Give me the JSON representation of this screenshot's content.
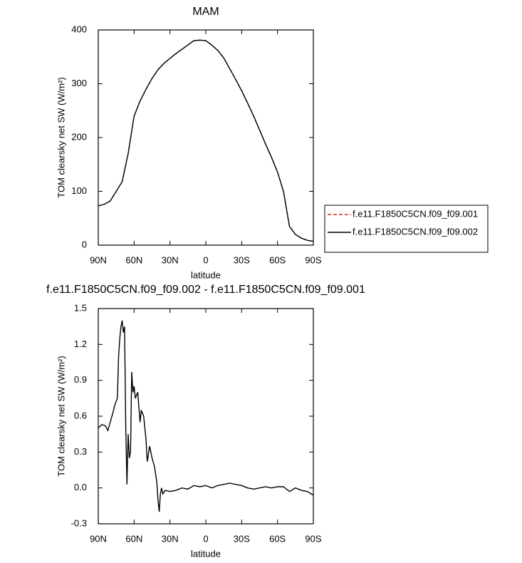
{
  "chart_data": [
    {
      "type": "line",
      "title": "MAM",
      "xlabel": "latitude",
      "ylabel": "TOM clearsky net SW (W/m²)",
      "xlim": [
        90,
        -90
      ],
      "ylim": [
        0,
        400
      ],
      "xticks": [
        {
          "value": 90,
          "label": "90N"
        },
        {
          "value": 60,
          "label": "60N"
        },
        {
          "value": 30,
          "label": "30N"
        },
        0,
        {
          "value": -30,
          "label": "30S"
        },
        {
          "value": -60,
          "label": "60S"
        },
        {
          "value": -90,
          "label": "90S"
        }
      ],
      "yticks": [
        0,
        100,
        200,
        300,
        400
      ],
      "legend": "right",
      "x": [
        90,
        85,
        80,
        75,
        70,
        65,
        60,
        55,
        50,
        45,
        40,
        35,
        30,
        25,
        20,
        15,
        10,
        5,
        0,
        -5,
        -10,
        -15,
        -20,
        -25,
        -30,
        -35,
        -40,
        -45,
        -50,
        -55,
        -60,
        -65,
        -70,
        -75,
        -80,
        -85,
        -90
      ],
      "series": [
        {
          "name": "f.e11.F1850C5CN.f09_f09.001",
          "color": "#d62020",
          "linestyle": "dashed",
          "values": [
            73,
            76,
            82,
            100,
            118,
            170,
            240,
            268,
            290,
            310,
            326,
            338,
            347,
            356,
            364,
            372,
            380,
            381,
            380,
            372,
            362,
            348,
            328,
            308,
            287,
            264,
            240,
            214,
            188,
            163,
            136,
            100,
            35,
            20,
            13,
            9,
            7
          ]
        },
        {
          "name": "f.e11.F1850C5CN.f09_f09.002",
          "color": "#000000",
          "linestyle": "solid",
          "values": [
            73,
            76,
            82,
            100,
            118,
            170,
            240,
            268,
            290,
            310,
            326,
            338,
            347,
            356,
            364,
            372,
            380,
            381,
            380,
            372,
            362,
            348,
            328,
            308,
            287,
            264,
            240,
            214,
            188,
            163,
            136,
            100,
            35,
            20,
            13,
            9,
            7
          ]
        }
      ]
    },
    {
      "type": "line",
      "title": "f.e11.F1850C5CN.f09_f09.002 - f.e11.F1850C5CN.f09_f09.001",
      "xlabel": "latitude",
      "ylabel": "TOM clearsky net SW (W/m²)",
      "xlim": [
        90,
        -90
      ],
      "ylim": [
        -0.3,
        1.5
      ],
      "xticks": [
        {
          "value": 90,
          "label": "90N"
        },
        {
          "value": 60,
          "label": "60N"
        },
        {
          "value": 30,
          "label": "30N"
        },
        0,
        {
          "value": -30,
          "label": "30S"
        },
        {
          "value": -60,
          "label": "60S"
        },
        {
          "value": -90,
          "label": "90S"
        }
      ],
      "yticks": [
        -0.3,
        {
          "value": 0,
          "label": "0.0"
        },
        0.3,
        0.6,
        0.9,
        1.2,
        1.5
      ],
      "x": [
        90,
        87,
        84,
        82,
        80,
        78,
        76,
        74,
        73,
        72,
        71,
        70,
        69,
        68,
        67,
        66,
        65,
        64,
        63,
        62,
        61,
        60,
        59,
        57,
        55,
        54,
        52,
        50,
        49,
        47,
        45,
        43,
        41,
        40,
        39,
        38,
        37,
        36,
        34,
        30,
        25,
        20,
        15,
        10,
        5,
        0,
        -5,
        -10,
        -15,
        -20,
        -25,
        -30,
        -35,
        -40,
        -45,
        -50,
        -55,
        -60,
        -65,
        -70,
        -75,
        -80,
        -85,
        -90
      ],
      "series": [
        {
          "color": "#000000",
          "linestyle": "solid",
          "values": [
            0.5,
            0.53,
            0.52,
            0.48,
            0.55,
            0.62,
            0.7,
            0.75,
            1.1,
            1.25,
            1.35,
            1.4,
            1.3,
            1.35,
            0.5,
            0.03,
            0.45,
            0.25,
            0.3,
            0.97,
            0.8,
            0.85,
            0.75,
            0.8,
            0.55,
            0.65,
            0.6,
            0.4,
            0.22,
            0.35,
            0.25,
            0.18,
            0.05,
            -0.1,
            -0.2,
            -0.05,
            0.0,
            -0.05,
            -0.02,
            -0.03,
            -0.02,
            0.0,
            -0.01,
            0.02,
            0.01,
            0.02,
            0.0,
            0.02,
            0.03,
            0.04,
            0.03,
            0.02,
            0.0,
            -0.01,
            0.0,
            0.01,
            0.0,
            0.01,
            0.01,
            -0.03,
            0.0,
            -0.02,
            -0.03,
            -0.06
          ]
        }
      ]
    }
  ]
}
